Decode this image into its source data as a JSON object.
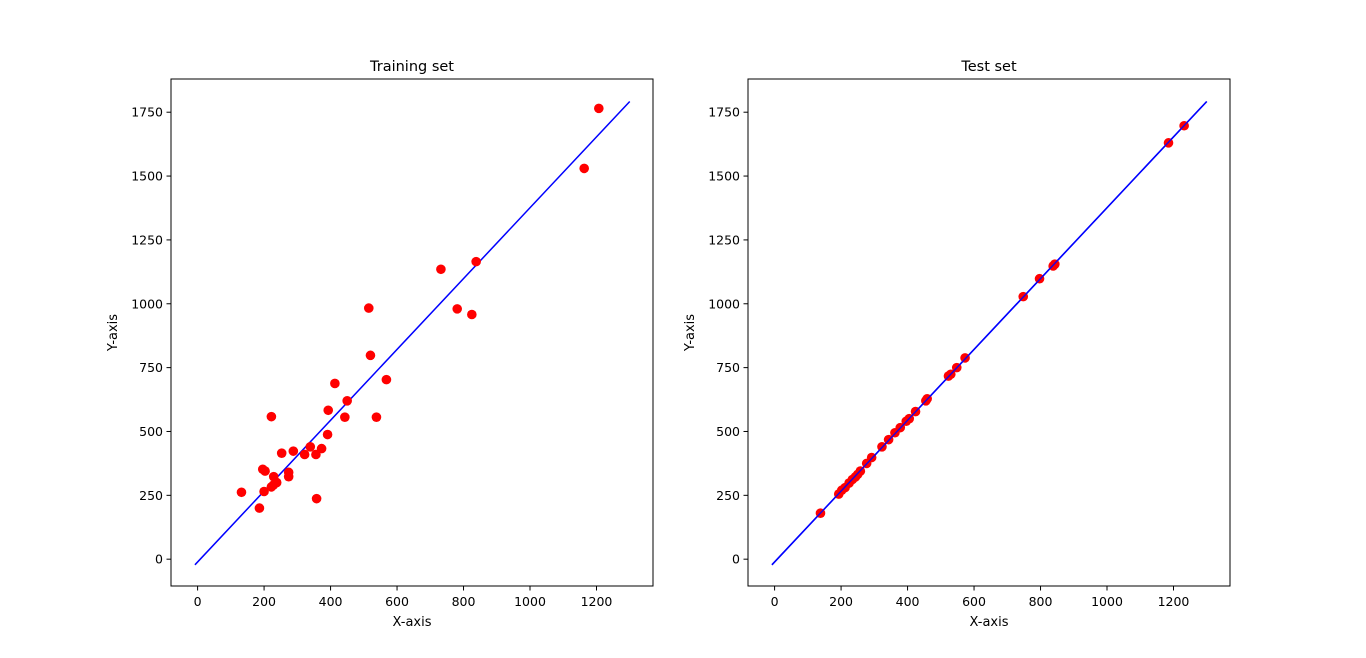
{
  "chart_data": [
    {
      "type": "scatter",
      "title": "Training set",
      "xlabel": "X-axis",
      "ylabel": "Y-axis",
      "xlim": [
        -80,
        1370
      ],
      "ylim": [
        -105,
        1880
      ],
      "xticks": [
        0,
        200,
        400,
        600,
        800,
        1000,
        1200
      ],
      "yticks": [
        0,
        250,
        500,
        750,
        1000,
        1250,
        1500,
        1750
      ],
      "grid": false,
      "legend": "none",
      "series": [
        {
          "name": "points",
          "kind": "scatter",
          "color": "#ff0000",
          "x": [
            1207,
            1163,
            838,
            732,
            781,
            825,
            515,
            520,
            568,
            413,
            450,
            393,
            443,
            538,
            391,
            339,
            288,
            322,
            356,
            373,
            253,
            222,
            203,
            196,
            229,
            274,
            274,
            238,
            228,
            222,
            200,
            132,
            186,
            358
          ],
          "y": [
            1765,
            1530,
            1165,
            1135,
            980,
            958,
            983,
            798,
            703,
            688,
            620,
            583,
            556,
            556,
            488,
            440,
            423,
            410,
            410,
            433,
            415,
            558,
            345,
            352,
            323,
            340,
            323,
            300,
            290,
            283,
            265,
            262,
            200,
            237
          ]
        },
        {
          "name": "fit",
          "kind": "line",
          "color": "#0000ff",
          "x": [
            -8,
            1300
          ],
          "y": [
            -22,
            1792
          ]
        }
      ]
    },
    {
      "type": "scatter",
      "title": "Test set",
      "xlabel": "X-axis",
      "ylabel": "Y-axis",
      "xlim": [
        -80,
        1370
      ],
      "ylim": [
        -105,
        1880
      ],
      "xticks": [
        0,
        200,
        400,
        600,
        800,
        1000,
        1200
      ],
      "yticks": [
        0,
        250,
        500,
        750,
        1000,
        1250,
        1500,
        1750
      ],
      "grid": false,
      "legend": "none",
      "series": [
        {
          "name": "points",
          "kind": "scatter",
          "color": "#ff0000",
          "x": [
            138,
            193,
            202,
            212,
            224,
            234,
            243,
            250,
            258,
            277,
            292,
            323,
            343,
            362,
            378,
            396,
            405,
            424,
            455,
            459,
            523,
            530,
            548,
            573,
            748,
            797,
            838,
            843,
            1185,
            1232
          ],
          "y": [
            180,
            255,
            270,
            280,
            298,
            312,
            322,
            332,
            345,
            375,
            398,
            440,
            468,
            495,
            515,
            540,
            550,
            578,
            620,
            628,
            717,
            724,
            750,
            788,
            1028,
            1098,
            1148,
            1155,
            1630,
            1697
          ]
        },
        {
          "name": "fit",
          "kind": "line",
          "color": "#0000ff",
          "x": [
            -8,
            1300
          ],
          "y": [
            -22,
            1792
          ]
        }
      ]
    }
  ]
}
